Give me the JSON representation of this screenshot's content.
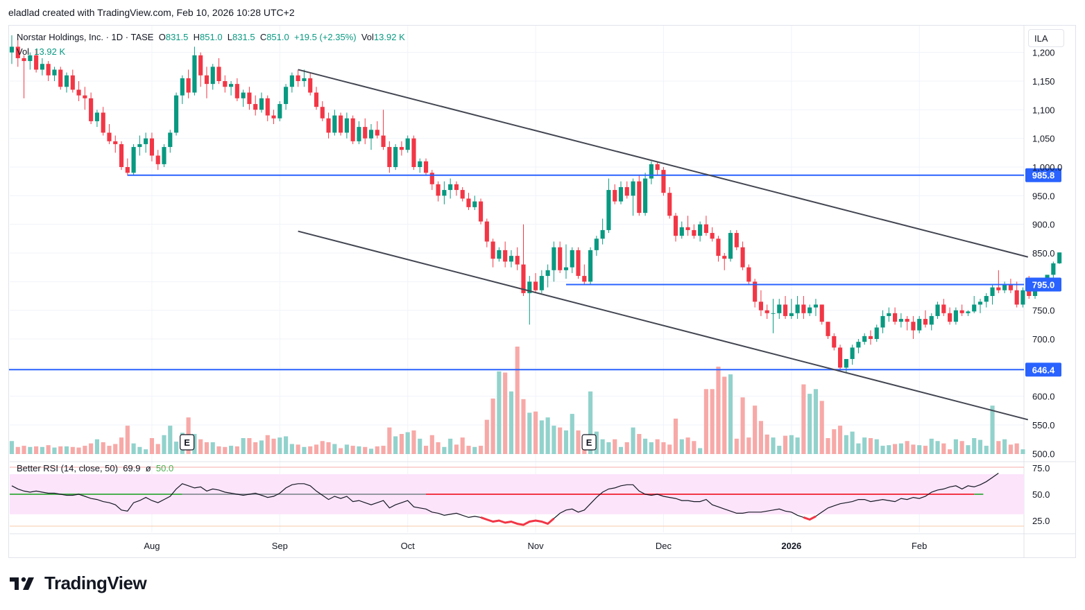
{
  "header": {
    "credit": "eladlad created with TradingView.com, Feb 10, 2026 10:28 UTC+2"
  },
  "legend": {
    "symbol": "Norstar Holdings, Inc. · 1D · TASE",
    "o_label": "O",
    "o": "831.5",
    "h_label": "H",
    "h": "851.0",
    "l_label": "L",
    "l": "831.5",
    "c_label": "C",
    "c": "851.0",
    "change": "+19.5 (+2.35%)",
    "vol_label": "Vol",
    "vol": "13.92 K",
    "vol_pane_label": "Vol",
    "vol_pane_value": "13.92 K"
  },
  "rsi_legend": {
    "name": "Better RSI (14, close, 50)",
    "value": "69.9",
    "sep": "ø",
    "mid": "50.0"
  },
  "currency": "ILA",
  "brand": {
    "name": "TradingView"
  },
  "colors": {
    "up": "#089981",
    "down": "#f23645",
    "up_vol": "#92d2cc",
    "down_vol": "#f7a9a7",
    "level": "#2962ff",
    "channel": "#434651",
    "rsi_band": "#fce4fb",
    "rsi_green": "#4caf50",
    "rsi_red": "#f23645",
    "rsi_gray": "#9598a1"
  },
  "chart_data": {
    "type": "candlestick",
    "title": "Norstar Holdings, Inc. · 1D · TASE",
    "y_ticks": [
      500.0,
      550.0,
      600.0,
      650.0,
      700.0,
      750.0,
      800.0,
      850.0,
      900.0,
      950.0,
      1000.0,
      1050.0,
      1100.0,
      1150.0,
      1200.0
    ],
    "y_tick_labels": [
      "500.0",
      "550.0",
      "600.0",
      "",
      "700.0",
      "750.0",
      "",
      "850.0",
      "900.0",
      "950.0",
      "1,000.0",
      "1,050",
      "1,100",
      "1,150",
      "1,200"
    ],
    "x_labels": [
      "Aug",
      "Sep",
      "Oct",
      "Nov",
      "Dec",
      "2026",
      "Feb"
    ],
    "x_label_days": [
      23,
      44,
      65,
      86,
      107,
      128,
      149
    ],
    "total_days": 160,
    "ohlc": [
      [
        1200,
        1230,
        1180,
        1210
      ],
      [
        1210,
        1225,
        1175,
        1190
      ],
      [
        1190,
        1195,
        1120,
        1185
      ],
      [
        1185,
        1200,
        1170,
        1195
      ],
      [
        1195,
        1205,
        1165,
        1170
      ],
      [
        1170,
        1190,
        1160,
        1180
      ],
      [
        1180,
        1185,
        1150,
        1160
      ],
      [
        1160,
        1175,
        1150,
        1170
      ],
      [
        1170,
        1175,
        1135,
        1140
      ],
      [
        1140,
        1165,
        1130,
        1160
      ],
      [
        1160,
        1170,
        1130,
        1135
      ],
      [
        1135,
        1150,
        1115,
        1125
      ],
      [
        1125,
        1140,
        1100,
        1120
      ],
      [
        1120,
        1130,
        1075,
        1080
      ],
      [
        1080,
        1100,
        1070,
        1095
      ],
      [
        1095,
        1105,
        1055,
        1060
      ],
      [
        1060,
        1075,
        1040,
        1045
      ],
      [
        1045,
        1055,
        1025,
        1040
      ],
      [
        1040,
        1045,
        995,
        1000
      ],
      [
        1000,
        1015,
        985,
        990
      ],
      [
        990,
        1040,
        985,
        1035
      ],
      [
        1035,
        1055,
        1020,
        1040
      ],
      [
        1040,
        1060,
        1025,
        1050
      ],
      [
        1050,
        1060,
        1010,
        1020
      ],
      [
        1020,
        1030,
        995,
        1005
      ],
      [
        1005,
        1040,
        1000,
        1035
      ],
      [
        1035,
        1065,
        1025,
        1060
      ],
      [
        1060,
        1130,
        1055,
        1125
      ],
      [
        1125,
        1160,
        1110,
        1155
      ],
      [
        1155,
        1170,
        1120,
        1130
      ],
      [
        1130,
        1210,
        1125,
        1195
      ],
      [
        1195,
        1200,
        1140,
        1160
      ],
      [
        1160,
        1175,
        1120,
        1145
      ],
      [
        1145,
        1180,
        1135,
        1175
      ],
      [
        1175,
        1190,
        1145,
        1150
      ],
      [
        1150,
        1160,
        1130,
        1140
      ],
      [
        1140,
        1150,
        1125,
        1145
      ],
      [
        1145,
        1155,
        1115,
        1120
      ],
      [
        1120,
        1135,
        1105,
        1130
      ],
      [
        1130,
        1140,
        1100,
        1110
      ],
      [
        1110,
        1125,
        1090,
        1100
      ],
      [
        1100,
        1130,
        1095,
        1120
      ],
      [
        1120,
        1125,
        1080,
        1090
      ],
      [
        1090,
        1100,
        1075,
        1085
      ],
      [
        1085,
        1115,
        1080,
        1110
      ],
      [
        1110,
        1145,
        1100,
        1140
      ],
      [
        1140,
        1165,
        1130,
        1160
      ],
      [
        1160,
        1170,
        1140,
        1150
      ],
      [
        1150,
        1170,
        1140,
        1155
      ],
      [
        1155,
        1165,
        1125,
        1130
      ],
      [
        1130,
        1140,
        1100,
        1105
      ],
      [
        1105,
        1115,
        1080,
        1085
      ],
      [
        1085,
        1095,
        1050,
        1060
      ],
      [
        1060,
        1100,
        1055,
        1090
      ],
      [
        1090,
        1095,
        1055,
        1060
      ],
      [
        1060,
        1095,
        1050,
        1085
      ],
      [
        1085,
        1090,
        1040,
        1045
      ],
      [
        1045,
        1080,
        1040,
        1070
      ],
      [
        1070,
        1085,
        1040,
        1050
      ],
      [
        1050,
        1075,
        1030,
        1065
      ],
      [
        1065,
        1080,
        1050,
        1055
      ],
      [
        1055,
        1100,
        1030,
        1035
      ],
      [
        1035,
        1045,
        990,
        1000
      ],
      [
        1000,
        1040,
        995,
        1035
      ],
      [
        1035,
        1045,
        1020,
        1030
      ],
      [
        1030,
        1055,
        1025,
        1050
      ],
      [
        1050,
        1055,
        995,
        1000
      ],
      [
        1000,
        1015,
        990,
        1010
      ],
      [
        1010,
        1015,
        985,
        990
      ],
      [
        990,
        995,
        960,
        970
      ],
      [
        970,
        975,
        940,
        950
      ],
      [
        950,
        975,
        935,
        960
      ],
      [
        960,
        980,
        945,
        970
      ],
      [
        970,
        975,
        950,
        960
      ],
      [
        960,
        965,
        940,
        945
      ],
      [
        945,
        955,
        925,
        930
      ],
      [
        930,
        950,
        925,
        940
      ],
      [
        940,
        945,
        900,
        905
      ],
      [
        905,
        910,
        860,
        870
      ],
      [
        870,
        875,
        825,
        840
      ],
      [
        840,
        860,
        835,
        855
      ],
      [
        855,
        870,
        825,
        835
      ],
      [
        835,
        855,
        825,
        845
      ],
      [
        845,
        860,
        820,
        830
      ],
      [
        830,
        900,
        775,
        780
      ],
      [
        780,
        810,
        725,
        800
      ],
      [
        800,
        815,
        780,
        785
      ],
      [
        785,
        820,
        780,
        810
      ],
      [
        810,
        830,
        790,
        820
      ],
      [
        820,
        870,
        800,
        860
      ],
      [
        860,
        870,
        815,
        820
      ],
      [
        820,
        865,
        805,
        825
      ],
      [
        825,
        860,
        815,
        855
      ],
      [
        855,
        860,
        805,
        810
      ],
      [
        810,
        830,
        795,
        800
      ],
      [
        800,
        860,
        795,
        855
      ],
      [
        855,
        880,
        845,
        875
      ],
      [
        875,
        910,
        865,
        890
      ],
      [
        890,
        980,
        885,
        960
      ],
      [
        960,
        970,
        935,
        940
      ],
      [
        940,
        975,
        935,
        965
      ],
      [
        965,
        975,
        945,
        950
      ],
      [
        950,
        980,
        915,
        975
      ],
      [
        975,
        985,
        915,
        920
      ],
      [
        920,
        990,
        915,
        980
      ],
      [
        980,
        1010,
        970,
        1005
      ],
      [
        1005,
        1010,
        985,
        995
      ],
      [
        995,
        1000,
        950,
        955
      ],
      [
        955,
        965,
        910,
        915
      ],
      [
        915,
        920,
        870,
        880
      ],
      [
        880,
        905,
        875,
        895
      ],
      [
        895,
        915,
        880,
        890
      ],
      [
        890,
        900,
        875,
        880
      ],
      [
        880,
        905,
        870,
        900
      ],
      [
        900,
        915,
        880,
        885
      ],
      [
        885,
        895,
        870,
        875
      ],
      [
        875,
        880,
        835,
        845
      ],
      [
        845,
        850,
        820,
        840
      ],
      [
        840,
        890,
        835,
        885
      ],
      [
        885,
        890,
        855,
        860
      ],
      [
        860,
        870,
        820,
        825
      ],
      [
        825,
        830,
        795,
        800
      ],
      [
        800,
        805,
        755,
        765
      ],
      [
        765,
        785,
        740,
        750
      ],
      [
        750,
        760,
        735,
        745
      ],
      [
        745,
        770,
        710,
        745
      ],
      [
        745,
        770,
        735,
        760
      ],
      [
        760,
        775,
        735,
        740
      ],
      [
        740,
        770,
        735,
        745
      ],
      [
        745,
        775,
        735,
        760
      ],
      [
        760,
        775,
        735,
        745
      ],
      [
        745,
        760,
        740,
        755
      ],
      [
        755,
        770,
        740,
        760
      ],
      [
        760,
        760,
        725,
        730
      ],
      [
        730,
        730,
        700,
        705
      ],
      [
        705,
        710,
        680,
        685
      ],
      [
        685,
        690,
        645,
        650
      ],
      [
        650,
        660,
        640,
        665
      ],
      [
        665,
        690,
        655,
        685
      ],
      [
        685,
        700,
        675,
        695
      ],
      [
        695,
        710,
        690,
        705
      ],
      [
        705,
        715,
        690,
        700
      ],
      [
        700,
        725,
        695,
        720
      ],
      [
        720,
        750,
        710,
        740
      ],
      [
        740,
        755,
        730,
        745
      ],
      [
        745,
        755,
        725,
        730
      ],
      [
        730,
        745,
        720,
        735
      ],
      [
        735,
        740,
        715,
        730
      ],
      [
        730,
        740,
        700,
        715
      ],
      [
        715,
        740,
        710,
        735
      ],
      [
        735,
        750,
        720,
        725
      ],
      [
        725,
        745,
        715,
        740
      ],
      [
        740,
        765,
        735,
        760
      ],
      [
        760,
        770,
        740,
        745
      ],
      [
        745,
        755,
        725,
        730
      ],
      [
        730,
        755,
        725,
        750
      ],
      [
        750,
        760,
        740,
        745
      ],
      [
        745,
        750,
        740,
        748
      ],
      [
        748,
        775,
        745,
        760
      ],
      [
        760,
        770,
        745,
        765
      ],
      [
        765,
        780,
        755,
        775
      ],
      [
        775,
        795,
        760,
        790
      ],
      [
        790,
        820,
        780,
        785
      ],
      [
        785,
        800,
        780,
        795
      ],
      [
        795,
        805,
        780,
        785
      ],
      [
        785,
        800,
        755,
        760
      ],
      [
        760,
        790,
        755,
        785
      ],
      [
        785,
        810,
        770,
        775
      ],
      [
        775,
        795,
        770,
        792
      ],
      [
        792,
        800,
        785,
        790
      ],
      [
        790,
        810,
        785,
        812
      ],
      [
        812,
        835,
        805,
        832
      ],
      [
        832,
        851,
        831,
        851
      ]
    ],
    "volume": [
      22,
      12,
      14,
      12,
      13,
      12,
      15,
      11,
      13,
      13,
      12,
      11,
      14,
      18,
      25,
      20,
      14,
      17,
      28,
      48,
      18,
      12,
      8,
      27,
      17,
      32,
      48,
      21,
      36,
      62,
      34,
      25,
      20,
      20,
      13,
      12,
      14,
      13,
      27,
      27,
      20,
      23,
      32,
      26,
      28,
      30,
      17,
      16,
      12,
      13,
      16,
      22,
      20,
      17,
      10,
      16,
      14,
      13,
      12,
      9,
      13,
      14,
      45,
      30,
      34,
      37,
      40,
      26,
      14,
      32,
      20,
      12,
      26,
      16,
      28,
      14,
      12,
      14,
      58,
      94,
      140,
      138,
      106,
      182,
      93,
      70,
      72,
      57,
      62,
      48,
      45,
      40,
      68,
      40,
      22,
      106,
      38,
      25,
      20,
      25,
      12,
      20,
      45,
      34,
      26,
      20,
      25,
      20,
      16,
      60,
      25,
      28,
      22,
      10,
      110,
      110,
      148,
      131,
      135,
      26,
      96,
      28,
      82,
      56,
      33,
      28,
      14,
      31,
      32,
      28,
      118,
      102,
      110,
      90,
      27,
      42,
      48,
      32,
      38,
      18,
      28,
      27,
      25,
      14,
      15,
      17,
      18,
      22,
      16,
      15,
      14,
      26,
      22,
      18,
      8,
      25,
      22,
      15,
      27,
      24,
      14,
      82,
      22,
      25,
      16,
      18,
      8
    ],
    "levels": [
      {
        "label": "985.8",
        "value": 985.8,
        "from_day": 19
      },
      {
        "label": "795.0",
        "value": 795.0,
        "from_day": 91
      },
      {
        "label": "646.4",
        "value": 646.4,
        "from_day": 0
      }
    ],
    "channel": {
      "upper": [
        [
          47,
          1170
        ],
        [
          160,
          822
        ]
      ],
      "lower": [
        [
          47,
          888
        ],
        [
          160,
          538
        ]
      ]
    },
    "earnings_days": [
      29,
      95
    ],
    "rsi": {
      "y_ticks_labels": [
        "75.0",
        "50.0",
        "25.0"
      ],
      "y_ticks": [
        75,
        50,
        25
      ],
      "band": [
        31,
        69
      ],
      "mid": 50,
      "values": [
        58,
        55,
        53,
        52,
        53,
        52,
        51,
        51,
        50,
        49,
        49,
        50,
        48,
        46,
        45,
        43,
        42,
        40,
        35,
        34,
        42,
        44,
        47,
        44,
        42,
        45,
        48,
        55,
        60,
        58,
        56,
        57,
        53,
        55,
        54,
        52,
        51,
        50,
        49,
        50,
        51,
        49,
        47,
        48,
        51,
        56,
        59,
        60,
        60,
        58,
        53,
        49,
        45,
        48,
        46,
        48,
        43,
        44,
        42,
        40,
        42,
        44,
        37,
        40,
        42,
        44,
        38,
        37,
        36,
        33,
        32,
        30,
        31,
        32,
        30,
        28,
        29,
        28,
        26,
        24,
        25,
        23,
        24,
        22,
        21,
        24,
        25,
        24,
        22,
        27,
        32,
        35,
        36,
        33,
        35,
        41,
        47,
        52,
        55,
        56,
        58,
        59,
        59,
        53,
        50,
        49,
        50,
        48,
        47,
        46,
        44,
        44,
        43,
        43,
        45,
        40,
        38,
        36,
        34,
        32,
        32,
        33,
        33,
        33,
        34,
        35,
        36,
        34,
        33,
        30,
        28,
        26,
        29,
        33,
        37,
        39,
        41,
        42,
        43,
        45,
        45,
        43,
        44,
        45,
        44,
        43,
        46,
        45,
        47,
        46,
        48,
        52,
        54,
        55,
        57,
        58,
        55,
        58,
        57,
        59,
        62,
        66,
        70
      ],
      "value_label": "69.9",
      "mid_label": "50.0"
    }
  }
}
